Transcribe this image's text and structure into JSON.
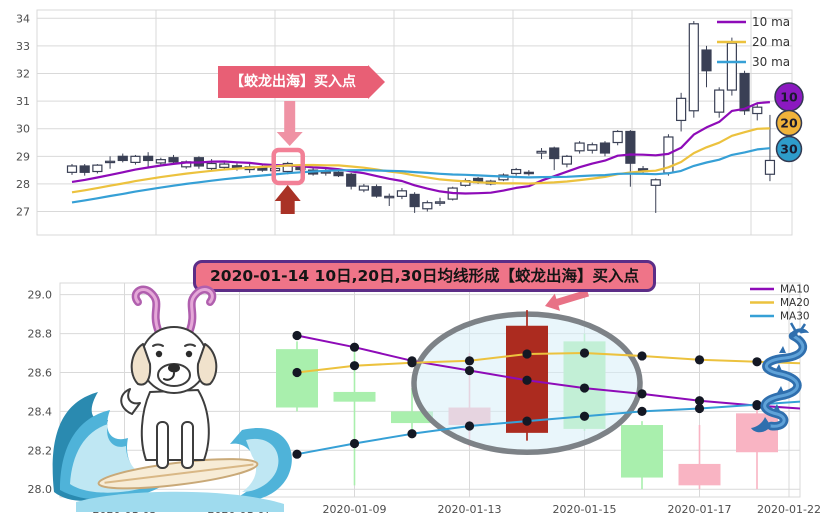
{
  "top_annotation": {
    "label": "【蛟龙出海】买入点"
  },
  "bottom_banner": {
    "label": "2020-01-14 10日,20日,30日均线形成【蛟龙出海】买入点"
  },
  "colors": {
    "ma10": "#8e0bb8",
    "ma20": "#ecc23e",
    "ma30": "#36a0d6",
    "candle_dark": "#3a4055",
    "candle_white": "#ffffff",
    "pink_box": "#f28096",
    "pink_arrow": "#ef92a4",
    "dark_red_arrow": "#a93226",
    "bottom_up": "#f9b4c3",
    "bottom_down": "#a9efad",
    "bottom_highlight": "#ac2b1f",
    "ellipse_ring": "#7d8287",
    "ellipse_fill": "#d7eef7",
    "badge10": "#8b19c0",
    "badge20": "#f0b33a",
    "badge30": "#2e9cca",
    "grid": "#d9d9d9",
    "tick_text": "#4d4d4d",
    "legend_text": "#333333"
  },
  "chart_data": [
    {
      "name": "daily-candles-overview",
      "type": "candlestick",
      "ylim": [
        26.15,
        34.3
      ],
      "yticks": [
        34,
        33,
        32,
        31,
        30,
        29,
        28,
        27
      ],
      "legend": [
        "10 ma",
        "20 ma",
        "30 ma"
      ],
      "badges": [
        "10",
        "20",
        "30"
      ],
      "highlight_index": 17,
      "ma_windows": [
        10,
        20,
        30
      ],
      "prehistory": {
        "start": 26.2,
        "end": 28.3,
        "count": 30
      },
      "candles_ohlc": [
        [
          28.42,
          28.72,
          28.33,
          28.65
        ],
        [
          28.65,
          28.72,
          28.3,
          28.42
        ],
        [
          28.45,
          28.72,
          28.38,
          28.68
        ],
        [
          28.78,
          29.0,
          28.55,
          28.82
        ],
        [
          29.0,
          29.1,
          28.78,
          28.85
        ],
        [
          28.78,
          29.05,
          28.7,
          29.0
        ],
        [
          29.0,
          29.15,
          28.6,
          28.85
        ],
        [
          28.76,
          28.95,
          28.68,
          28.88
        ],
        [
          28.95,
          29.05,
          28.72,
          28.8
        ],
        [
          28.62,
          28.85,
          28.55,
          28.8
        ],
        [
          28.95,
          29.0,
          28.55,
          28.65
        ],
        [
          28.56,
          28.9,
          28.45,
          28.74
        ],
        [
          28.6,
          28.78,
          28.52,
          28.72
        ],
        [
          28.66,
          28.75,
          28.48,
          28.56
        ],
        [
          28.52,
          28.75,
          28.4,
          28.62
        ],
        [
          28.6,
          28.68,
          28.44,
          28.5
        ],
        [
          28.48,
          28.6,
          28.4,
          28.56
        ],
        [
          28.45,
          28.8,
          28.35,
          28.74
        ],
        [
          28.66,
          28.72,
          28.42,
          28.52
        ],
        [
          28.5,
          28.58,
          28.3,
          28.36
        ],
        [
          28.4,
          28.55,
          28.3,
          28.44
        ],
        [
          28.42,
          28.5,
          28.25,
          28.3
        ],
        [
          28.35,
          28.4,
          27.8,
          27.92
        ],
        [
          27.78,
          28.0,
          27.7,
          27.92
        ],
        [
          27.9,
          27.98,
          27.5,
          27.56
        ],
        [
          27.5,
          27.65,
          27.2,
          27.55
        ],
        [
          27.55,
          27.85,
          27.45,
          27.75
        ],
        [
          27.62,
          27.7,
          26.95,
          27.18
        ],
        [
          27.1,
          27.4,
          27.0,
          27.32
        ],
        [
          27.3,
          27.5,
          27.2,
          27.35
        ],
        [
          27.45,
          27.9,
          27.4,
          27.85
        ],
        [
          27.95,
          28.2,
          27.9,
          28.12
        ],
        [
          28.2,
          28.25,
          28.0,
          28.05
        ],
        [
          28.0,
          28.15,
          27.95,
          28.1
        ],
        [
          28.15,
          28.38,
          28.1,
          28.32
        ],
        [
          28.38,
          28.58,
          28.3,
          28.52
        ],
        [
          28.42,
          28.5,
          28.3,
          28.38
        ],
        [
          29.12,
          29.3,
          28.9,
          29.18
        ],
        [
          29.3,
          29.35,
          28.5,
          28.92
        ],
        [
          28.72,
          29.05,
          28.6,
          29.0
        ],
        [
          29.2,
          29.55,
          29.1,
          29.48
        ],
        [
          29.22,
          29.5,
          29.1,
          29.42
        ],
        [
          29.48,
          29.55,
          29.0,
          29.12
        ],
        [
          29.5,
          29.95,
          29.4,
          29.9
        ],
        [
          29.9,
          29.95,
          27.9,
          28.75
        ],
        [
          28.55,
          28.65,
          28.35,
          28.45
        ],
        [
          27.95,
          28.2,
          26.95,
          28.15
        ],
        [
          28.4,
          29.8,
          28.3,
          29.7
        ],
        [
          30.3,
          31.3,
          29.9,
          31.1
        ],
        [
          30.65,
          33.9,
          30.4,
          33.8
        ],
        [
          32.85,
          33.0,
          31.5,
          32.1
        ],
        [
          30.6,
          31.5,
          30.4,
          31.4
        ],
        [
          31.4,
          33.3,
          31.2,
          33.1
        ],
        [
          32.0,
          32.1,
          30.5,
          30.65
        ],
        [
          30.55,
          30.9,
          30.3,
          30.78
        ],
        [
          28.35,
          30.5,
          28.1,
          28.85
        ]
      ]
    },
    {
      "name": "jiaolong-pattern-zoom",
      "type": "candlestick",
      "ylim": [
        27.96,
        29.06
      ],
      "yticks": [
        29.0,
        28.8,
        28.6,
        28.4,
        28.2,
        28.0
      ],
      "xtick_labels": [
        "2020-01-03",
        "2020-01-07",
        "2020-01-09",
        "2020-01-13",
        "2020-01-15",
        "2020-01-17",
        "2020-01-22"
      ],
      "legend": [
        "MA10",
        "MA20",
        "MA30"
      ],
      "candles": [
        {
          "date": "2020-01-08",
          "slot": 4,
          "o": 28.72,
          "h": 28.76,
          "l": 28.4,
          "c": 28.42,
          "kind": "down"
        },
        {
          "date": "2020-01-09",
          "slot": 5,
          "o": 28.5,
          "h": 28.72,
          "l": 28.02,
          "c": 28.45,
          "kind": "down"
        },
        {
          "date": "2020-01-10",
          "slot": 6,
          "o": 28.4,
          "h": 28.52,
          "l": 28.27,
          "c": 28.34,
          "kind": "down"
        },
        {
          "date": "2020-01-13",
          "slot": 7,
          "o": 28.33,
          "h": 28.7,
          "l": 28.22,
          "c": 28.42,
          "kind": "up"
        },
        {
          "date": "2020-01-14",
          "slot": 8,
          "o": 28.29,
          "h": 28.92,
          "l": 28.25,
          "c": 28.84,
          "kind": "highlight"
        },
        {
          "date": "2020-01-15",
          "slot": 9,
          "o": 28.76,
          "h": 28.8,
          "l": 28.3,
          "c": 28.31,
          "kind": "down"
        },
        {
          "date": "2020-01-16",
          "slot": 10,
          "o": 28.33,
          "h": 28.35,
          "l": 28.0,
          "c": 28.06,
          "kind": "down"
        },
        {
          "date": "2020-01-17",
          "slot": 11,
          "o": 28.02,
          "h": 28.33,
          "l": 28.0,
          "c": 28.13,
          "kind": "up"
        },
        {
          "date": "2020-01-20",
          "slot": 12,
          "o": 28.19,
          "h": 28.42,
          "l": 28.0,
          "c": 28.39,
          "kind": "up"
        }
      ],
      "ma_start_slot": 4,
      "ma10": [
        28.79,
        28.73,
        28.66,
        28.61,
        28.56,
        28.52,
        28.49,
        28.455,
        28.43,
        28.41
      ],
      "ma20": [
        28.6,
        28.635,
        28.65,
        28.66,
        28.695,
        28.7,
        28.685,
        28.665,
        28.655,
        28.645
      ],
      "ma30": [
        28.18,
        28.235,
        28.285,
        28.325,
        28.35,
        28.375,
        28.4,
        28.415,
        28.435,
        28.455
      ]
    }
  ]
}
